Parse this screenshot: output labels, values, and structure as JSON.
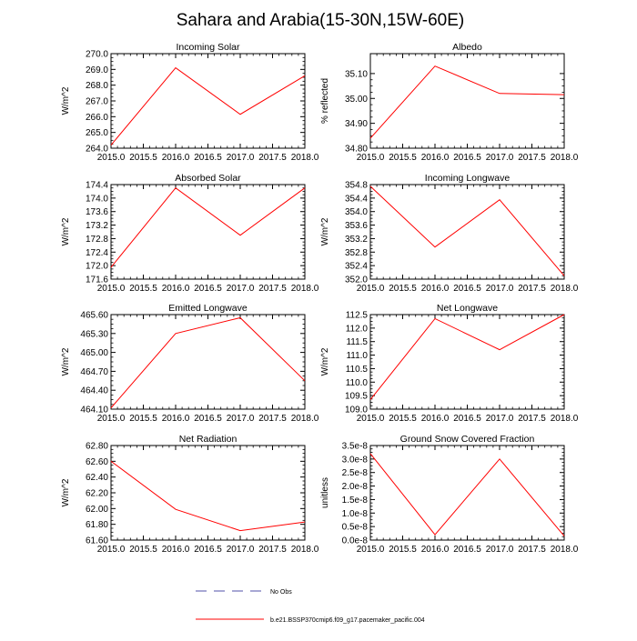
{
  "figure": {
    "title": "Sahara and Arabia(15-30N,15W-60E)",
    "series_color": "#ff0000",
    "obs_color": "#5050aa"
  },
  "legend": {
    "obs_label": "No Obs",
    "model_label": "b.e21.BSSP370cmip6.f09_g17.pacemaker_pacific.004"
  },
  "chart_data": [
    {
      "id": "incoming-solar",
      "type": "line",
      "title": "Incoming Solar",
      "ylabel": "W/m^2",
      "x": [
        2015,
        2016,
        2017,
        2018
      ],
      "values": [
        264.2,
        269.1,
        266.15,
        268.6
      ],
      "xlim": [
        2015,
        2018
      ],
      "ylim": [
        264,
        270
      ],
      "xticks": [
        2015,
        2015.5,
        2016,
        2016.5,
        2017,
        2017.5,
        2018
      ],
      "xtick_labels": [
        "2015.0",
        "2015.5",
        "2016.0",
        "2016.5",
        "2017.0",
        "2017.5",
        "2018.0"
      ],
      "yticks": [
        264,
        265,
        266,
        267,
        268,
        269,
        270
      ],
      "ytick_labels": [
        "264.0",
        "265.0",
        "266.0",
        "267.0",
        "268.0",
        "269.0",
        "270.0"
      ]
    },
    {
      "id": "albedo",
      "type": "line",
      "title": "Albedo",
      "ylabel": "% reflected",
      "x": [
        2015,
        2016,
        2017,
        2018
      ],
      "values": [
        34.84,
        35.13,
        35.02,
        35.015
      ],
      "xlim": [
        2015,
        2018
      ],
      "ylim": [
        34.8,
        35.18
      ],
      "xticks": [
        2015,
        2015.5,
        2016,
        2016.5,
        2017,
        2017.5,
        2018
      ],
      "xtick_labels": [
        "2015.0",
        "2015.5",
        "2016.0",
        "2016.5",
        "2017.0",
        "2017.5",
        "2018.0"
      ],
      "yticks": [
        34.8,
        34.9,
        35.0,
        35.1
      ],
      "ytick_labels": [
        "34.80",
        "34.90",
        "35.00",
        "35.10"
      ]
    },
    {
      "id": "absorbed-solar",
      "type": "line",
      "title": "Absorbed Solar",
      "ylabel": "W/m^2",
      "x": [
        2015,
        2016,
        2017,
        2018
      ],
      "values": [
        171.95,
        174.3,
        172.9,
        174.3
      ],
      "xlim": [
        2015,
        2018
      ],
      "ylim": [
        171.6,
        174.4
      ],
      "xticks": [
        2015,
        2015.5,
        2016,
        2016.5,
        2017,
        2017.5,
        2018
      ],
      "xtick_labels": [
        "2015.0",
        "2015.5",
        "2016.0",
        "2016.5",
        "2017.0",
        "2017.5",
        "2018.0"
      ],
      "yticks": [
        171.6,
        172.0,
        172.4,
        172.8,
        173.2,
        173.6,
        174.0,
        174.4
      ],
      "ytick_labels": [
        "171.6",
        "172.0",
        "172.4",
        "172.8",
        "173.2",
        "173.6",
        "174.0",
        "174.4"
      ]
    },
    {
      "id": "incoming-longwave",
      "type": "line",
      "title": "Incoming Longwave",
      "ylabel": "W/m^2",
      "x": [
        2015,
        2016,
        2017,
        2018
      ],
      "values": [
        354.75,
        352.95,
        354.35,
        352.1
      ],
      "xlim": [
        2015,
        2018
      ],
      "ylim": [
        352.0,
        354.8
      ],
      "xticks": [
        2015,
        2015.5,
        2016,
        2016.5,
        2017,
        2017.5,
        2018
      ],
      "xtick_labels": [
        "2015.0",
        "2015.5",
        "2016.0",
        "2016.5",
        "2017.0",
        "2017.5",
        "2018.0"
      ],
      "yticks": [
        352.0,
        352.4,
        352.8,
        353.2,
        353.6,
        354.0,
        354.4,
        354.8
      ],
      "ytick_labels": [
        "352.0",
        "352.4",
        "352.8",
        "353.2",
        "353.6",
        "354.0",
        "354.4",
        "354.8"
      ]
    },
    {
      "id": "emitted-longwave",
      "type": "line",
      "title": "Emitted Longwave",
      "ylabel": "W/m^2",
      "x": [
        2015,
        2016,
        2017,
        2018
      ],
      "values": [
        464.12,
        465.3,
        465.55,
        464.55
      ],
      "xlim": [
        2015,
        2018
      ],
      "ylim": [
        464.1,
        465.6
      ],
      "xticks": [
        2015,
        2015.5,
        2016,
        2016.5,
        2017,
        2017.5,
        2018
      ],
      "xtick_labels": [
        "2015.0",
        "2015.5",
        "2016.0",
        "2016.5",
        "2017.0",
        "2017.5",
        "2018.0"
      ],
      "yticks": [
        464.1,
        464.4,
        464.7,
        465.0,
        465.3,
        465.6
      ],
      "ytick_labels": [
        "464.10",
        "464.40",
        "464.70",
        "465.00",
        "465.30",
        "465.60"
      ]
    },
    {
      "id": "net-longwave",
      "type": "line",
      "title": "Net Longwave",
      "ylabel": "W/m^2",
      "x": [
        2015,
        2016,
        2017,
        2018
      ],
      "values": [
        109.35,
        112.35,
        111.2,
        112.5
      ],
      "xlim": [
        2015,
        2018
      ],
      "ylim": [
        109.0,
        112.5
      ],
      "xticks": [
        2015,
        2015.5,
        2016,
        2016.5,
        2017,
        2017.5,
        2018
      ],
      "xtick_labels": [
        "2015.0",
        "2015.5",
        "2016.0",
        "2016.5",
        "2017.0",
        "2017.5",
        "2018.0"
      ],
      "yticks": [
        109.0,
        109.5,
        110.0,
        110.5,
        111.0,
        111.5,
        112.0,
        112.5
      ],
      "ytick_labels": [
        "109.0",
        "109.5",
        "110.0",
        "110.5",
        "111.0",
        "111.5",
        "112.0",
        "112.5"
      ]
    },
    {
      "id": "net-radiation",
      "type": "line",
      "title": "Net Radiation",
      "ylabel": "W/m^2",
      "x": [
        2015,
        2016,
        2017,
        2018
      ],
      "values": [
        62.6,
        61.99,
        61.72,
        61.83
      ],
      "xlim": [
        2015,
        2018
      ],
      "ylim": [
        61.6,
        62.8
      ],
      "xticks": [
        2015,
        2015.5,
        2016,
        2016.5,
        2017,
        2017.5,
        2018
      ],
      "xtick_labels": [
        "2015.0",
        "2015.5",
        "2016.0",
        "2016.5",
        "2017.0",
        "2017.5",
        "2018.0"
      ],
      "yticks": [
        61.6,
        61.8,
        62.0,
        62.2,
        62.4,
        62.6,
        62.8
      ],
      "ytick_labels": [
        "61.60",
        "61.80",
        "62.00",
        "62.20",
        "62.40",
        "62.60",
        "62.80"
      ]
    },
    {
      "id": "ground-snow-covered-fraction",
      "type": "line",
      "title": "Ground Snow Covered Fraction",
      "ylabel": "unitless",
      "x": [
        2015,
        2016,
        2017,
        2018
      ],
      "values": [
        3.2e-08,
        2e-09,
        3e-08,
        1.5e-09
      ],
      "xlim": [
        2015,
        2018
      ],
      "ylim": [
        0,
        3.5e-08
      ],
      "xticks": [
        2015,
        2015.5,
        2016,
        2016.5,
        2017,
        2017.5,
        2018
      ],
      "xtick_labels": [
        "2015.0",
        "2015.5",
        "2016.0",
        "2016.5",
        "2017.0",
        "2017.5",
        "2018.0"
      ],
      "yticks": [
        0,
        5e-09,
        1e-08,
        1.5e-08,
        2e-08,
        2.5e-08,
        3e-08,
        3.5e-08
      ],
      "ytick_labels": [
        "0.0e-8",
        "0.5e-8",
        "1.0e-8",
        "1.5e-8",
        "2.0e-8",
        "2.5e-8",
        "3.0e-8",
        "3.5e-8"
      ]
    }
  ]
}
